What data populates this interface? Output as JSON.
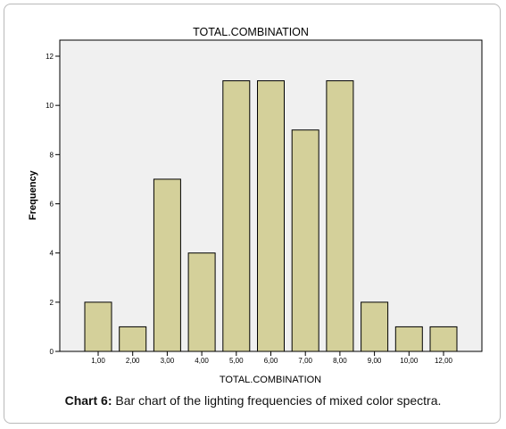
{
  "chart_data": {
    "type": "bar",
    "title": "TOTAL.COMBINATION",
    "xlabel": "TOTAL.COMBINATION",
    "ylabel": "Frequency",
    "categories": [
      "1,00",
      "2,00",
      "3,00",
      "4,00",
      "5,00",
      "6,00",
      "7,00",
      "8,00",
      "9,00",
      "10,00",
      "12,00"
    ],
    "values": [
      2,
      1,
      7,
      4,
      11,
      11,
      9,
      11,
      2,
      1,
      1
    ],
    "ylim": [
      0,
      12
    ],
    "yticks": [
      "0",
      "2",
      "4",
      "6",
      "8",
      "10",
      "12"
    ],
    "grid": false,
    "colors": {
      "bar_fill": "#d4d09a",
      "bar_stroke": "#000000",
      "plot_bg": "#f0f0f0"
    }
  },
  "caption": {
    "label": "Chart 6:",
    "text": " Bar chart of the lighting frequencies of mixed color spectra."
  }
}
